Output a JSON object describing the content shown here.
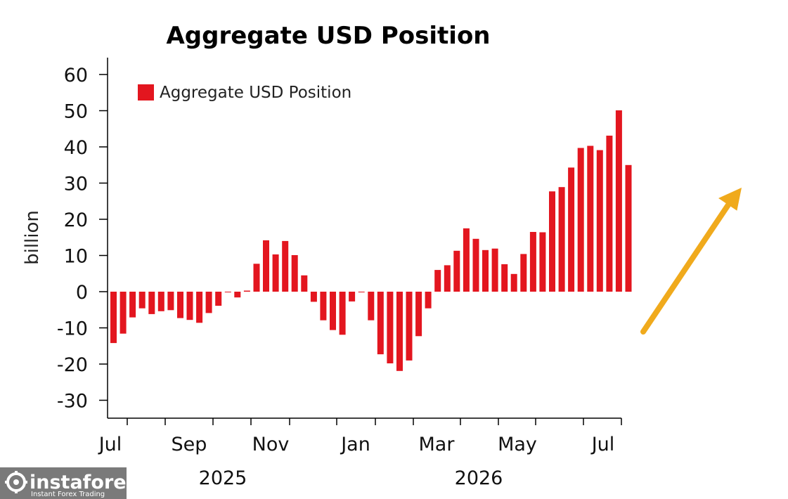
{
  "chart_data": {
    "type": "bar",
    "title": "Aggregate USD Position",
    "ylabel": "billion",
    "ylim": [
      -35,
      65
    ],
    "yticks": [
      60,
      50,
      40,
      30,
      20,
      10,
      0,
      -10,
      -20,
      -30
    ],
    "legend": {
      "label": "Aggregate USD Position",
      "placement": "top-left"
    },
    "month_labels": [
      "Jul",
      "Sep",
      "Nov",
      "Jan",
      "Mar",
      "May",
      "Jul"
    ],
    "year_labels": [
      "2025",
      "2026"
    ],
    "series": [
      {
        "name": "Aggregate USD Position",
        "color": "#e3161f",
        "values": [
          -14.2,
          -11.6,
          -7.1,
          -4.6,
          -6.2,
          -5.4,
          -5.1,
          -7.3,
          -7.8,
          -8.6,
          -5.9,
          -3.9,
          -0.2,
          -1.6,
          0.3,
          7.7,
          14.2,
          10.3,
          14.0,
          10.1,
          4.5,
          -2.8,
          -7.9,
          -10.6,
          -11.9,
          -2.7,
          -0.2,
          -7.9,
          -17.3,
          -19.8,
          -21.9,
          -19.0,
          -12.3,
          -4.6,
          6.0,
          7.3,
          11.3,
          17.5,
          14.6,
          11.5,
          11.9,
          7.6,
          4.9,
          10.4,
          16.5,
          16.4,
          27.7,
          28.9,
          34.3,
          39.7,
          40.3,
          39.1,
          43.1,
          50.1,
          35.0
        ]
      }
    ]
  },
  "annotation": {
    "arrow_color": "#f0aa1c"
  },
  "watermark": {
    "brand": "instaforex",
    "tagline": "Instant Forex Trading"
  }
}
